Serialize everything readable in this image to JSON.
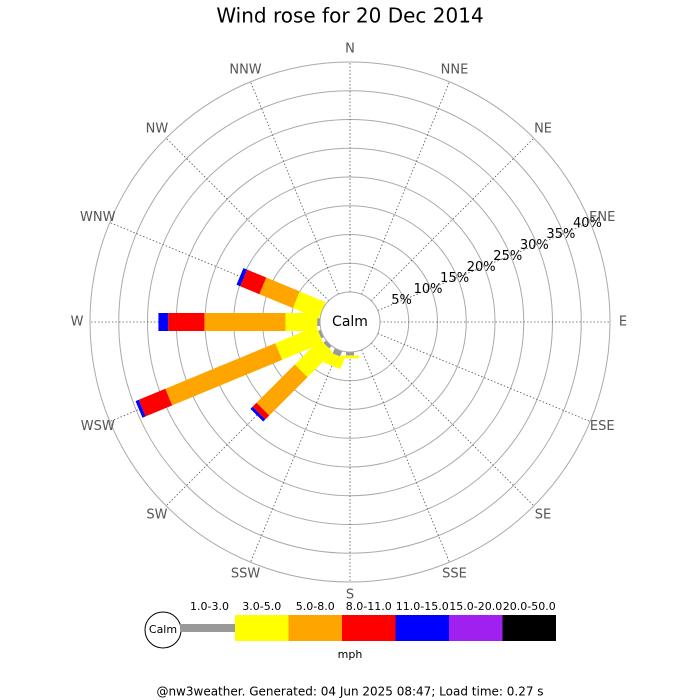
{
  "chart_data": {
    "type": "windrose",
    "title": "Wind rose for 20 Dec 2014",
    "directions": [
      "N",
      "NNE",
      "NE",
      "ENE",
      "E",
      "ESE",
      "SE",
      "SSE",
      "S",
      "SSW",
      "SW",
      "WSW",
      "W",
      "WNW",
      "NW",
      "NNW"
    ],
    "calm_label": "Calm",
    "rlim": [
      0,
      40
    ],
    "rticks": [
      {
        "value": 5,
        "label": "5%"
      },
      {
        "value": 10,
        "label": "10%"
      },
      {
        "value": 15,
        "label": "15%"
      },
      {
        "value": 20,
        "label": "20%"
      },
      {
        "value": 25,
        "label": "25%"
      },
      {
        "value": 30,
        "label": "30%"
      },
      {
        "value": 35,
        "label": "35%"
      },
      {
        "value": 40,
        "label": "40%"
      }
    ],
    "series": [
      {
        "name": "1.0-3.0",
        "color": "#999999",
        "values": [
          0,
          0,
          0,
          0,
          0,
          0,
          0,
          0,
          0.6,
          1,
          0.6,
          0.5,
          0.5,
          0,
          0,
          0
        ]
      },
      {
        "name": "3.0-5.0",
        "color": "#ffff00",
        "values": [
          0,
          0,
          0,
          0,
          0,
          0,
          0,
          0,
          0.5,
          2,
          6.2,
          7.7,
          5.5,
          4.9,
          0,
          0
        ]
      },
      {
        "name": "5.0-8.0",
        "color": "#ffa500",
        "values": [
          0,
          0,
          0,
          0,
          0,
          0,
          0,
          0,
          0,
          0,
          9.4,
          20.7,
          14.1,
          6.3,
          0,
          0
        ]
      },
      {
        "name": "8.0-11.0",
        "color": "#ff0000",
        "values": [
          0,
          0,
          0,
          0,
          0,
          0,
          0,
          0,
          0,
          0,
          1,
          5,
          6.3,
          3.6,
          0,
          0
        ]
      },
      {
        "name": "11.0-15.0",
        "color": "#0000ff",
        "values": [
          0,
          0,
          0,
          0,
          0,
          0,
          0,
          0,
          0,
          0,
          0.5,
          0.6,
          1.7,
          0.7,
          0,
          0
        ]
      },
      {
        "name": "15.0-20.0",
        "color": "#a020f0",
        "values": [
          0,
          0,
          0,
          0,
          0,
          0,
          0,
          0,
          0,
          0,
          0,
          0,
          0,
          0,
          0,
          0
        ]
      },
      {
        "name": "20.0-50.0",
        "color": "#000000",
        "values": [
          0,
          0,
          0,
          0,
          0,
          0,
          0,
          0,
          0,
          0,
          0,
          0,
          0,
          0,
          0,
          0
        ]
      }
    ],
    "legend_unit": "mph",
    "footer": "@nw3weather. Generated: 04 Jun 2025 08:47; Load time: 0.27 s"
  }
}
